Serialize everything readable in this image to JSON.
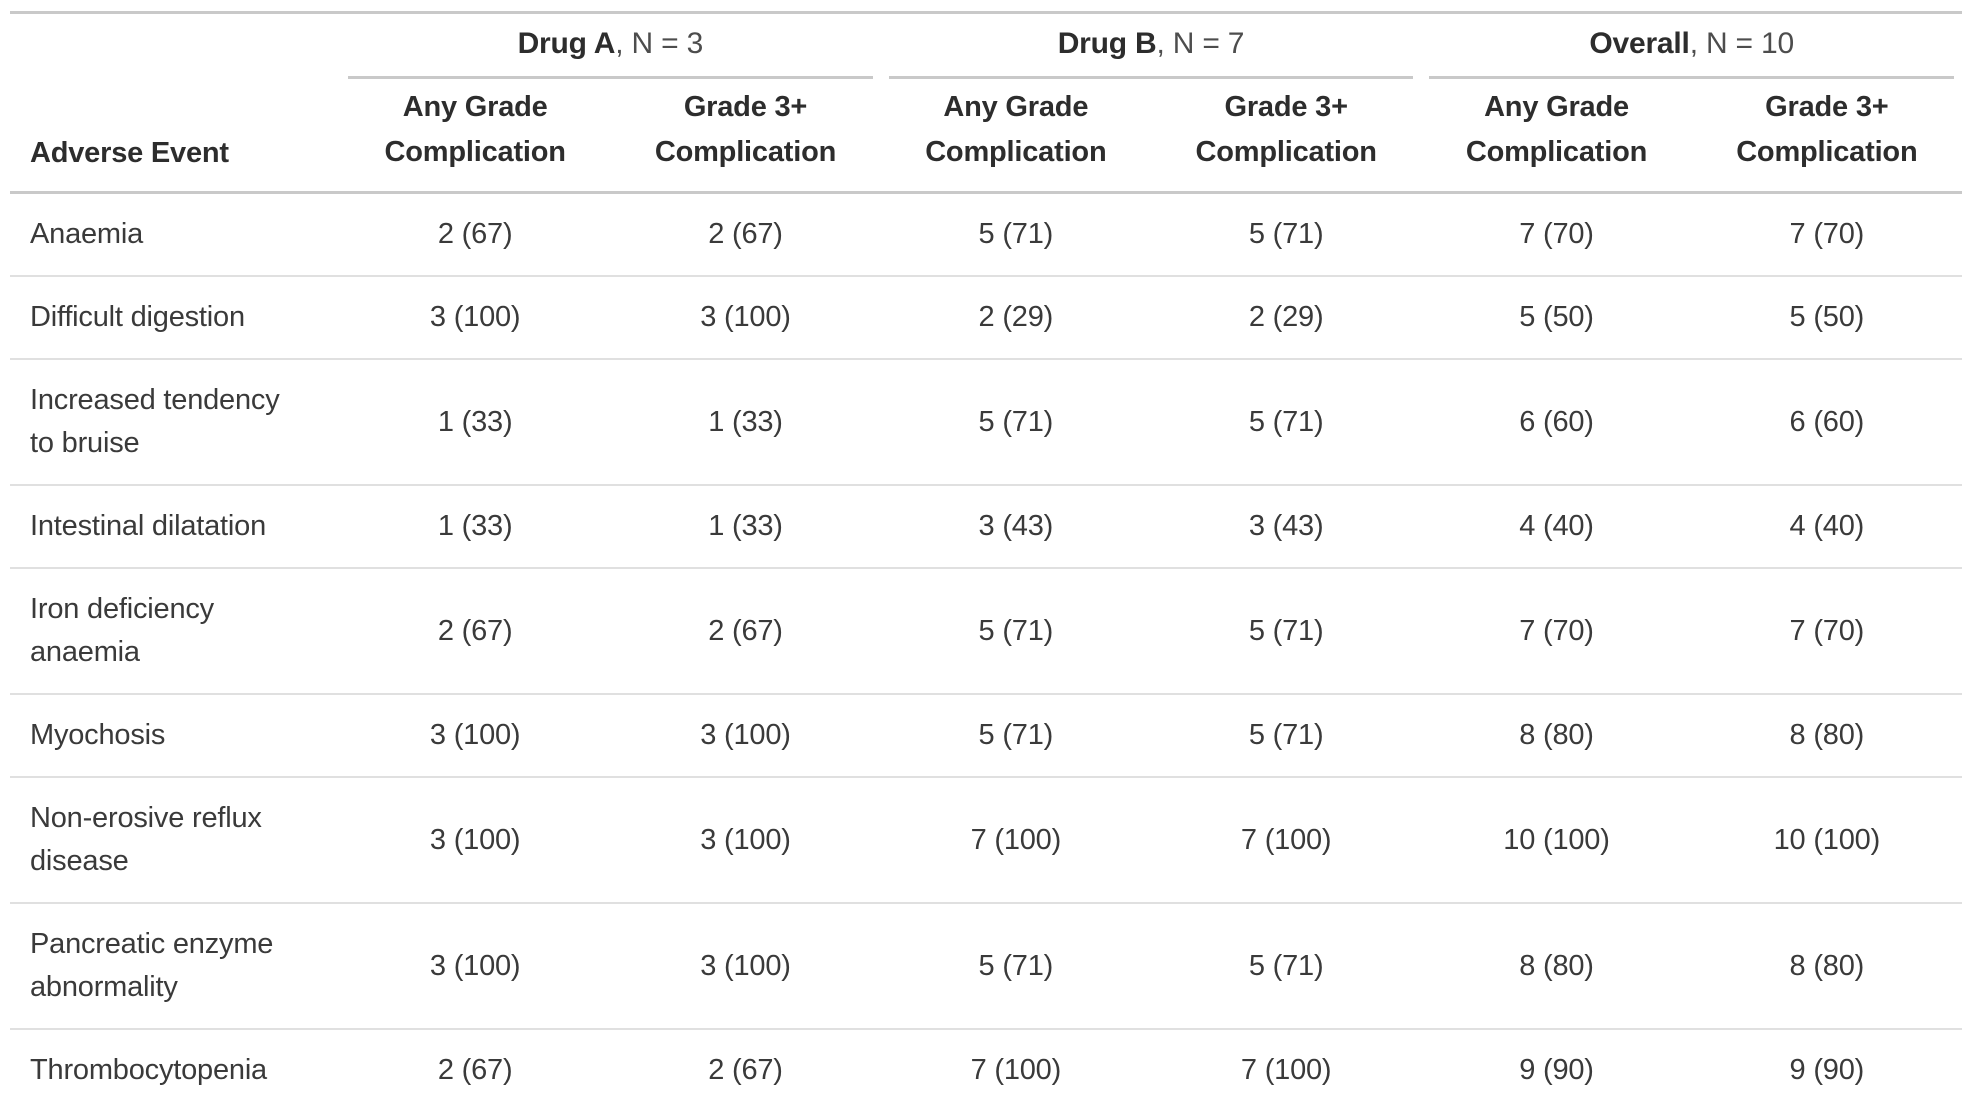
{
  "colors": {
    "background": "#ffffff",
    "text_body": "#3a3a3a",
    "text_header": "#2d2d2d",
    "text_spanner_n": "#4d4d4d",
    "border_strong": "#c9c9c9",
    "border_row": "#e0e0e0"
  },
  "chart_data": {
    "type": "table",
    "stub_header": "Adverse Event",
    "spanners": [
      {
        "name": "Drug A",
        "n_label": ", N = 3",
        "spans_columns": [
          1,
          2
        ]
      },
      {
        "name": "Drug B",
        "n_label": ", N = 7",
        "spans_columns": [
          3,
          4
        ]
      },
      {
        "name": "Overall",
        "n_label": ", N = 10",
        "spans_columns": [
          5,
          6
        ]
      }
    ],
    "columns": [
      "Any Grade Complication",
      "Grade 3+ Complication",
      "Any Grade Complication",
      "Grade 3+ Complication",
      "Any Grade Complication",
      "Grade 3+ Complication"
    ],
    "rows": [
      {
        "label": "Anaemia",
        "values": [
          "2 (67)",
          "2 (67)",
          "5 (71)",
          "5 (71)",
          "7 (70)",
          "7 (70)"
        ]
      },
      {
        "label": "Difficult digestion",
        "values": [
          "3 (100)",
          "3 (100)",
          "2 (29)",
          "2 (29)",
          "5 (50)",
          "5 (50)"
        ]
      },
      {
        "label": "Increased tendency to bruise",
        "values": [
          "1 (33)",
          "1 (33)",
          "5 (71)",
          "5 (71)",
          "6 (60)",
          "6 (60)"
        ]
      },
      {
        "label": "Intestinal dilatation",
        "values": [
          "1 (33)",
          "1 (33)",
          "3 (43)",
          "3 (43)",
          "4 (40)",
          "4 (40)"
        ]
      },
      {
        "label": "Iron deficiency anaemia",
        "values": [
          "2 (67)",
          "2 (67)",
          "5 (71)",
          "5 (71)",
          "7 (70)",
          "7 (70)"
        ]
      },
      {
        "label": "Myochosis",
        "values": [
          "3 (100)",
          "3 (100)",
          "5 (71)",
          "5 (71)",
          "8 (80)",
          "8 (80)"
        ]
      },
      {
        "label": "Non-erosive reflux disease",
        "values": [
          "3 (100)",
          "3 (100)",
          "7 (100)",
          "7 (100)",
          "10 (100)",
          "10 (100)"
        ]
      },
      {
        "label": "Pancreatic enzyme abnormality",
        "values": [
          "3 (100)",
          "3 (100)",
          "5 (71)",
          "5 (71)",
          "8 (80)",
          "8 (80)"
        ]
      },
      {
        "label": "Thrombocytopenia",
        "values": [
          "2 (67)",
          "2 (67)",
          "7 (100)",
          "7 (100)",
          "9 (90)",
          "9 (90)"
        ]
      }
    ]
  }
}
